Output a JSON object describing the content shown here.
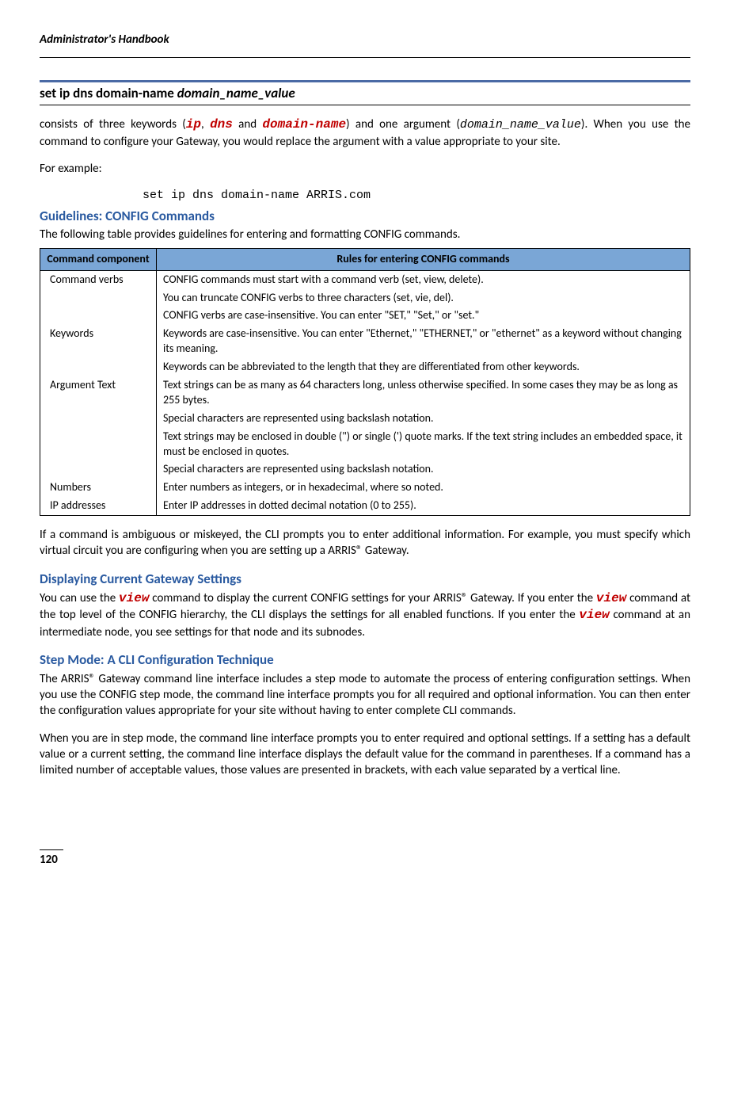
{
  "header": {
    "title": "Administrator's Handbook"
  },
  "cmd": {
    "prefix": "set ip dns domain-name ",
    "arg": "domain_name_value"
  },
  "intro": {
    "consists_pre": "consists of three keywords (",
    "kw1": "ip",
    "sep1": ", ",
    "kw2": "dns",
    "and": " and ",
    "kw3": "domain-name",
    "consists_post": ") and one argument (",
    "arg": "domain_name_value",
    "consists_end": "). When you use the command to configure your Gateway, you would replace the argument with a value appro­priate to your site.",
    "for_example": "For example:",
    "example_code": "set ip dns domain-name ARRIS.com"
  },
  "guidelines": {
    "heading": "Guidelines: CONFIG Commands",
    "lead": "The following table provides guidelines for entering and formatting CONFIG commands.",
    "table": {
      "col1": "Command component",
      "col2": "Rules for entering CONFIG commands",
      "rows": [
        {
          "c": "Command verbs",
          "r": "CONFIG commands must start with a command verb (set, view, delete)."
        },
        {
          "c": "",
          "r": "You can truncate CONFIG verbs to three characters (set, vie, del)."
        },
        {
          "c": "",
          "r": "CONFIG verbs are case-insensitive. You can enter \"SET,\" \"Set,\" or \"set.\""
        },
        {
          "c": "Keywords",
          "r": "Keywords are case-insensitive. You can enter \"Ethernet,\" \"ETHERNET,\" or \"ethernet\" as a keyword without changing its meaning."
        },
        {
          "c": "",
          "r": "Keywords can be abbreviated to the length that they are differentiated from other keywords."
        },
        {
          "c": "Argument Text",
          "r": "Text strings can be as many as 64 characters long, unless otherwise specified. In some cases they may be as long as 255 bytes."
        },
        {
          "c": "",
          "r": "Special characters are represented using backslash notation."
        },
        {
          "c": "",
          "r": "Text strings may be enclosed in double (\") or single (') quote marks. If the text string includes an embedded space, it must be enclosed in quotes."
        },
        {
          "c": "",
          "r": "Special characters are represented using backslash notation."
        },
        {
          "c": "Numbers",
          "r": "Enter numbers as integers, or in hexadecimal, where so noted."
        },
        {
          "c": "IP addresses",
          "r": "Enter IP addresses in dotted decimal notation (0 to 255)."
        }
      ]
    },
    "closing": "If a command is ambiguous or miskeyed, the CLI prompts you to enter additional information. For example, you must specify which virtual circuit you are configuring when you are setting up a ARRIS® Gateway."
  },
  "display": {
    "heading": "Displaying Current Gateway Settings",
    "p_a": "You can use the ",
    "view1": "view",
    "p_b": " command to display the current CONFIG settings for your ARRIS® Gateway. If you enter the ",
    "view2": "view",
    "p_c": "  command at the top level of the CONFIG hierarchy, the CLI displays the settings for all enabled func­tions. If you enter the ",
    "view3": "view",
    "p_d": " command at an intermediate node, you see settings for that node and its subn­odes."
  },
  "step": {
    "heading": "Step Mode: A CLI Configuration Technique",
    "p1": "The ARRIS® Gateway command line interface includes a step mode to automate the process of entering config­uration settings. When you use the CONFIG step mode, the command line interface prompts you for all required and optional information. You can then enter the configuration values appropriate for your site with­out having to enter complete CLI commands.",
    "p2": "When you are in step mode, the command line interface prompts you to enter required and optional settings. If a setting has a default value or a current setting, the command line interface displays the default value for the command in parentheses. If a command has a limited number of acceptable values, those values are pre­sented in brackets, with each value separated by a vertical line."
  },
  "page_number": "120"
}
